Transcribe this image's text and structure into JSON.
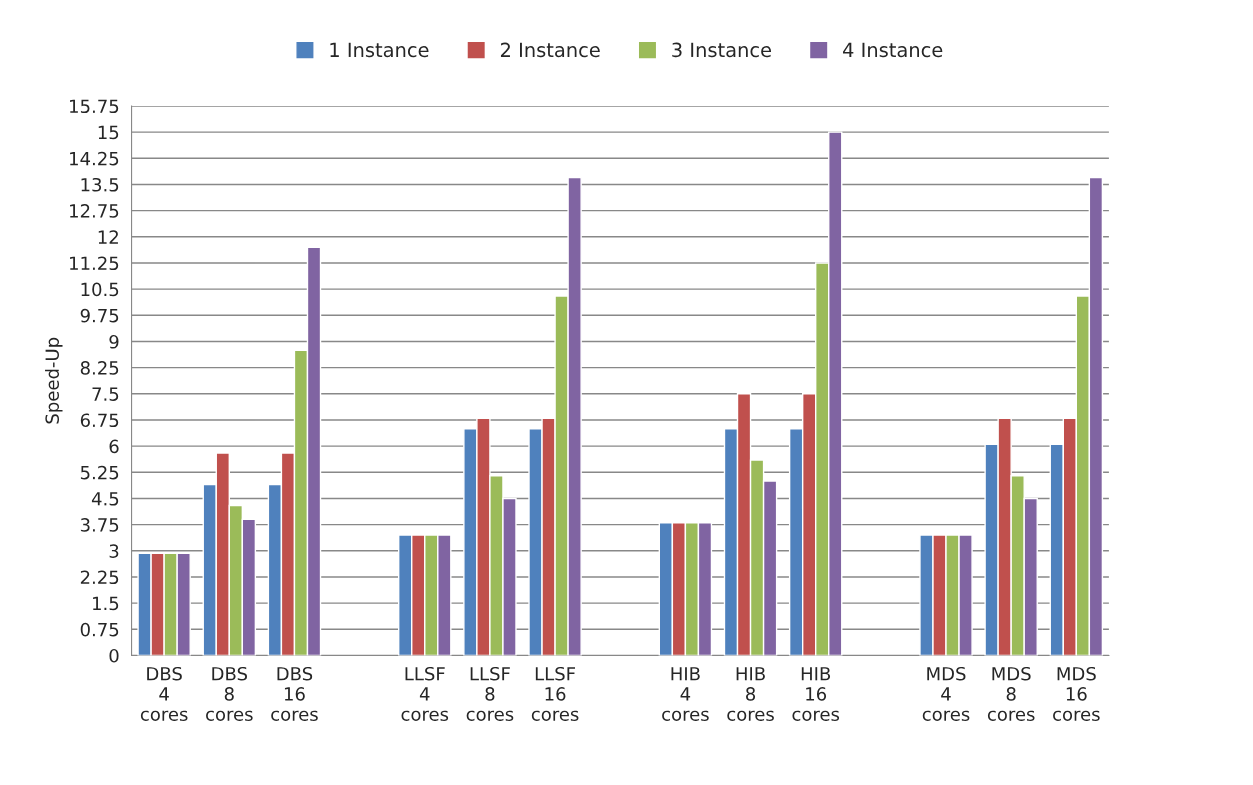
{
  "chart_data": {
    "type": "bar",
    "ylabel": "Speed-Up",
    "categories": [
      "DBS\n4\ncores",
      "DBS\n8\ncores",
      "DBS\n16\ncores",
      null,
      "LLSF\n4\ncores",
      "LLSF\n8\ncores",
      "LLSF\n16\ncores",
      null,
      "HIB\n4\ncores",
      "HIB\n8\ncores",
      "HIB\n16\ncores",
      null,
      "MDS\n4\ncores",
      "MDS\n8\ncores",
      "MDS\n16\ncores"
    ],
    "series": [
      {
        "name": "1 Instance",
        "color": "#4f81bd",
        "values": [
          2.93,
          4.9,
          4.9,
          null,
          3.45,
          6.5,
          6.5,
          null,
          3.8,
          6.5,
          6.5,
          null,
          3.45,
          6.05,
          6.05
        ]
      },
      {
        "name": "2 Instance",
        "color": "#c0504d",
        "values": [
          2.93,
          5.8,
          5.8,
          null,
          3.45,
          6.8,
          6.8,
          null,
          3.8,
          7.5,
          7.5,
          null,
          3.45,
          6.8,
          6.8
        ]
      },
      {
        "name": "3 Instance",
        "color": "#9bbb59",
        "values": [
          2.93,
          4.3,
          8.75,
          null,
          3.45,
          5.15,
          10.3,
          null,
          3.8,
          5.6,
          11.25,
          null,
          3.45,
          5.15,
          10.3
        ]
      },
      {
        "name": "4 Instance",
        "color": "#8064a2",
        "values": [
          2.93,
          3.9,
          11.7,
          null,
          3.45,
          4.5,
          13.7,
          null,
          3.8,
          5.0,
          15.0,
          null,
          3.45,
          4.5,
          13.7
        ]
      }
    ],
    "ylim": [
      0,
      15.75
    ],
    "yticks": [
      0,
      0.75,
      1.5,
      2.25,
      3,
      3.75,
      4.5,
      5.25,
      6,
      6.75,
      7.5,
      8.25,
      9,
      9.75,
      10.5,
      11.25,
      12,
      12.75,
      13.5,
      14.25,
      15,
      15.75
    ],
    "grid": "y",
    "legend": "top"
  }
}
